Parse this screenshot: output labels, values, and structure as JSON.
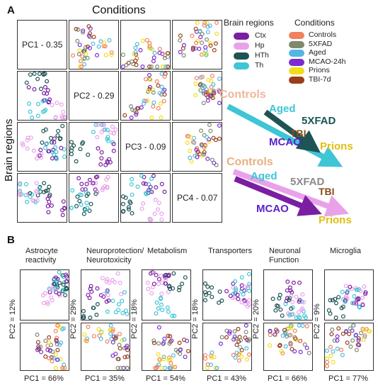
{
  "panelA": {
    "letter": "A",
    "conditions_title": "Conditions",
    "brain_regions_label": "Brain regions",
    "pc_labels": [
      "PC1 - 0.35",
      "PC2 - 0.29",
      "PC3 - 0.09",
      "PC4 - 0.07"
    ]
  },
  "legend": {
    "brain_regions_title": "Brain regions",
    "brain_regions": [
      {
        "label": "Ctx",
        "color": "#7a1fa2"
      },
      {
        "label": "Hp",
        "color": "#e9a2e9"
      },
      {
        "label": "HTh",
        "color": "#1e5454"
      },
      {
        "label": "Th",
        "color": "#3ec5d6"
      }
    ],
    "conditions_title": "Conditions",
    "conditions": [
      {
        "label": "Controls",
        "color": "#f08060"
      },
      {
        "label": "5XFAD",
        "color": "#7d8a6e"
      },
      {
        "label": "Aged",
        "color": "#52b7e2"
      },
      {
        "label": "MCAO-24h",
        "color": "#7d2bd1"
      },
      {
        "label": "Prions",
        "color": "#f3dd1a"
      },
      {
        "label": "TBI-7d",
        "color": "#9a3d1a"
      }
    ]
  },
  "arrows_top": {
    "controls": "Controls",
    "aged": "Aged",
    "fivexfad": "5XFAD",
    "mcao": "MCAO",
    "tbi": "TBI",
    "prions": "Prions"
  },
  "arrows_bottom": {
    "controls": "Controls",
    "aged": "Aged",
    "fivexfad": "5XFAD",
    "mcao": "MCAO",
    "tbi": "TBI",
    "prions": "Prions"
  },
  "panelB": {
    "letter": "B",
    "categories": [
      {
        "title": "Astrocyte reactivity",
        "pc2": "PC2 = 12%",
        "pc1": "PC1 = 66%"
      },
      {
        "title": "Neuroprotection/ Neurotoxicity",
        "pc2": "PC2 = 29%",
        "pc1": "PC1 = 35%"
      },
      {
        "title": "Metabolism",
        "pc2": "PC2 = 18%",
        "pc1": "PC1 = 54%"
      },
      {
        "title": "Transporters",
        "pc2": "PC2 = 18%",
        "pc1": "PC1 = 43%"
      },
      {
        "title": "Neuronal Function",
        "pc2": "PC2 = 20%",
        "pc1": "PC1 = 66%"
      },
      {
        "title": "Microglia",
        "pc2": "PC2 = 9%",
        "pc1": "PC1 = 77%"
      }
    ]
  }
}
